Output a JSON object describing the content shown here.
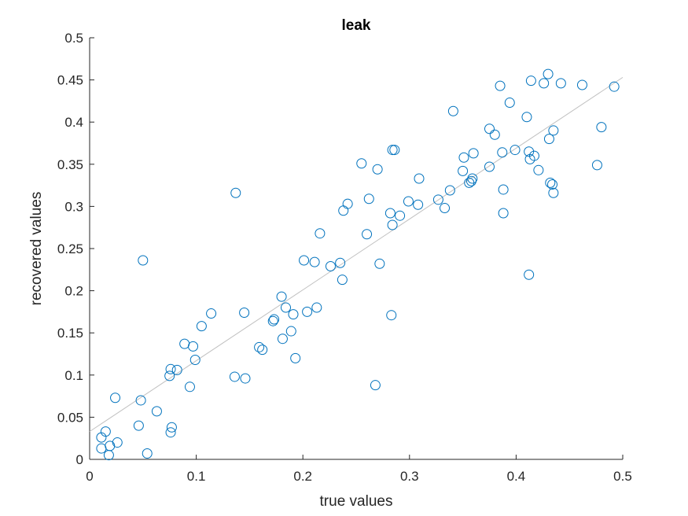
{
  "chart_data": {
    "type": "scatter",
    "title": "leak",
    "xlabel": "true values",
    "ylabel": "recovered values",
    "xlim": [
      0,
      0.5
    ],
    "ylim": [
      0,
      0.5
    ],
    "xticks": [
      0,
      0.1,
      0.2,
      0.3,
      0.4,
      0.5
    ],
    "xtick_labels": [
      "0",
      "0.1",
      "0.2",
      "0.3",
      "0.4",
      "0.5"
    ],
    "yticks": [
      0,
      0.05,
      0.1,
      0.15,
      0.2,
      0.25,
      0.3,
      0.35,
      0.4,
      0.45,
      0.5
    ],
    "ytick_labels": [
      "0",
      "0.05",
      "0.1",
      "0.15",
      "0.2",
      "0.25",
      "0.3",
      "0.35",
      "0.4",
      "0.45",
      "0.5"
    ],
    "grid": false,
    "marker_color": "#0072BD",
    "fit_line_color": "#C0C0C0",
    "fit_line": {
      "slope": 0.84,
      "intercept": 0.033
    },
    "series": [
      {
        "marker": "circle-open",
        "points": [
          [
            0.011,
            0.013
          ],
          [
            0.011,
            0.026
          ],
          [
            0.015,
            0.033
          ],
          [
            0.018,
            0.005
          ],
          [
            0.019,
            0.016
          ],
          [
            0.024,
            0.073
          ],
          [
            0.026,
            0.02
          ],
          [
            0.046,
            0.04
          ],
          [
            0.048,
            0.07
          ],
          [
            0.05,
            0.236
          ],
          [
            0.054,
            0.007
          ],
          [
            0.063,
            0.057
          ],
          [
            0.075,
            0.099
          ],
          [
            0.076,
            0.107
          ],
          [
            0.076,
            0.032
          ],
          [
            0.077,
            0.038
          ],
          [
            0.082,
            0.106
          ],
          [
            0.089,
            0.137
          ],
          [
            0.094,
            0.086
          ],
          [
            0.097,
            0.134
          ],
          [
            0.099,
            0.118
          ],
          [
            0.105,
            0.158
          ],
          [
            0.114,
            0.173
          ],
          [
            0.136,
            0.098
          ],
          [
            0.137,
            0.316
          ],
          [
            0.145,
            0.174
          ],
          [
            0.146,
            0.096
          ],
          [
            0.159,
            0.133
          ],
          [
            0.162,
            0.13
          ],
          [
            0.172,
            0.164
          ],
          [
            0.173,
            0.166
          ],
          [
            0.18,
            0.193
          ],
          [
            0.181,
            0.143
          ],
          [
            0.184,
            0.18
          ],
          [
            0.189,
            0.152
          ],
          [
            0.191,
            0.172
          ],
          [
            0.193,
            0.12
          ],
          [
            0.201,
            0.236
          ],
          [
            0.204,
            0.175
          ],
          [
            0.211,
            0.234
          ],
          [
            0.213,
            0.18
          ],
          [
            0.216,
            0.268
          ],
          [
            0.226,
            0.229
          ],
          [
            0.235,
            0.233
          ],
          [
            0.237,
            0.213
          ],
          [
            0.238,
            0.295
          ],
          [
            0.242,
            0.303
          ],
          [
            0.255,
            0.351
          ],
          [
            0.26,
            0.267
          ],
          [
            0.262,
            0.309
          ],
          [
            0.268,
            0.088
          ],
          [
            0.27,
            0.344
          ],
          [
            0.272,
            0.232
          ],
          [
            0.282,
            0.292
          ],
          [
            0.283,
            0.171
          ],
          [
            0.284,
            0.278
          ],
          [
            0.284,
            0.367
          ],
          [
            0.286,
            0.367
          ],
          [
            0.291,
            0.289
          ],
          [
            0.299,
            0.306
          ],
          [
            0.308,
            0.302
          ],
          [
            0.309,
            0.333
          ],
          [
            0.327,
            0.308
          ],
          [
            0.333,
            0.298
          ],
          [
            0.338,
            0.319
          ],
          [
            0.341,
            0.413
          ],
          [
            0.35,
            0.342
          ],
          [
            0.351,
            0.358
          ],
          [
            0.356,
            0.328
          ],
          [
            0.358,
            0.33
          ],
          [
            0.359,
            0.333
          ],
          [
            0.36,
            0.363
          ],
          [
            0.375,
            0.392
          ],
          [
            0.375,
            0.347
          ],
          [
            0.38,
            0.385
          ],
          [
            0.385,
            0.443
          ],
          [
            0.387,
            0.364
          ],
          [
            0.388,
            0.32
          ],
          [
            0.388,
            0.292
          ],
          [
            0.394,
            0.423
          ],
          [
            0.399,
            0.367
          ],
          [
            0.41,
            0.406
          ],
          [
            0.412,
            0.365
          ],
          [
            0.412,
            0.219
          ],
          [
            0.413,
            0.356
          ],
          [
            0.414,
            0.449
          ],
          [
            0.417,
            0.36
          ],
          [
            0.421,
            0.343
          ],
          [
            0.426,
            0.446
          ],
          [
            0.43,
            0.457
          ],
          [
            0.431,
            0.38
          ],
          [
            0.432,
            0.328
          ],
          [
            0.434,
            0.326
          ],
          [
            0.435,
            0.39
          ],
          [
            0.435,
            0.316
          ],
          [
            0.442,
            0.446
          ],
          [
            0.462,
            0.444
          ],
          [
            0.476,
            0.349
          ],
          [
            0.48,
            0.394
          ],
          [
            0.492,
            0.442
          ]
        ]
      }
    ]
  }
}
